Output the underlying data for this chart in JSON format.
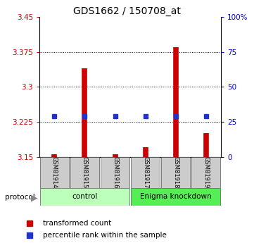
{
  "title": "GDS1662 / 150708_at",
  "samples": [
    "GSM81914",
    "GSM81915",
    "GSM81916",
    "GSM81917",
    "GSM81918",
    "GSM81919"
  ],
  "red_values": [
    3.155,
    3.34,
    3.155,
    3.17,
    3.385,
    3.2
  ],
  "blue_values": [
    3.237,
    3.237,
    3.237,
    3.237,
    3.237,
    3.237
  ],
  "y_min": 3.15,
  "y_max": 3.45,
  "y_ticks_left": [
    3.15,
    3.225,
    3.3,
    3.375,
    3.45
  ],
  "y_ticks_right": [
    0,
    25,
    50,
    75,
    100
  ],
  "bar_base": 3.15,
  "bar_color": "#cc0000",
  "blue_color": "#2233cc",
  "group_labels": [
    "control",
    "Enigma knockdown"
  ],
  "group_colors": [
    "#bbffbb",
    "#55ee55"
  ],
  "protocol_label": "protocol",
  "legend_items": [
    "transformed count",
    "percentile rank within the sample"
  ],
  "tick_color_left": "#cc0000",
  "tick_color_right": "#0000cc",
  "dotted_grid": [
    3.225,
    3.3,
    3.375
  ]
}
